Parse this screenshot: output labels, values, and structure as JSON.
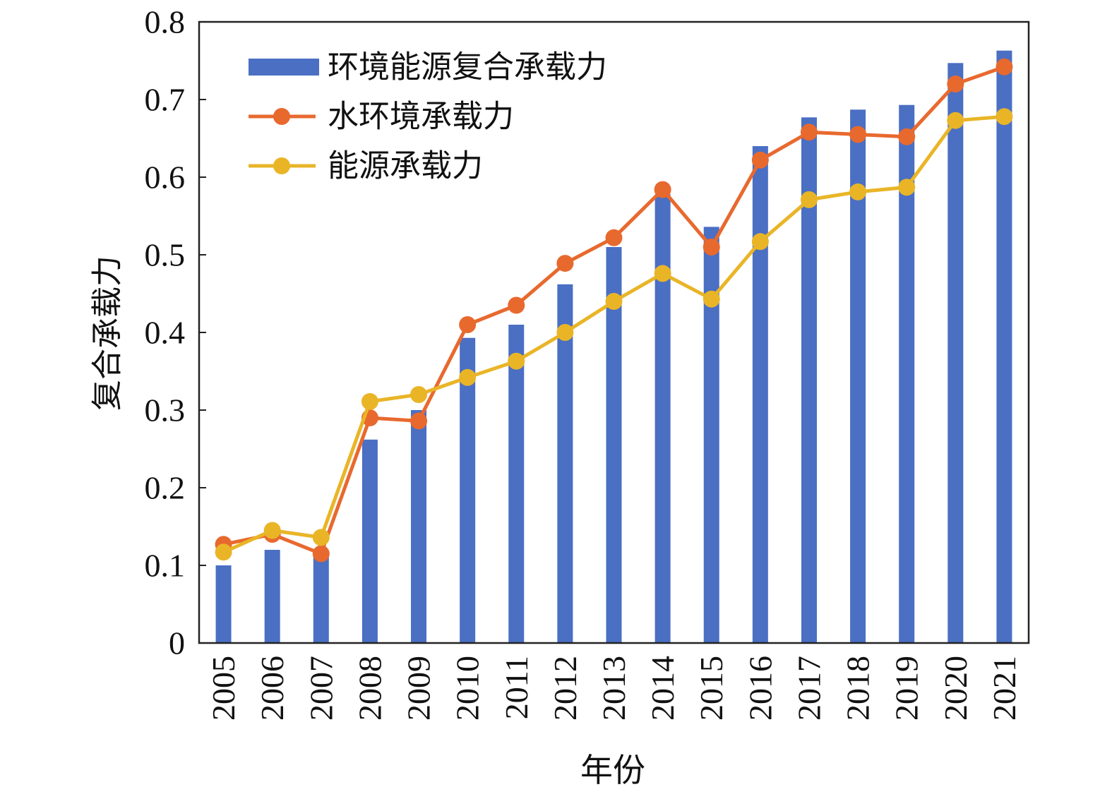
{
  "chart_data": {
    "type": "bar",
    "title": "",
    "xlabel": "年份",
    "ylabel": "复合承载力",
    "ylim": [
      0,
      0.8
    ],
    "yticks": [
      "0",
      "0.1",
      "0.2",
      "0.3",
      "0.4",
      "0.5",
      "0.6",
      "0.7",
      "0.8"
    ],
    "categories": [
      "2005",
      "2006",
      "2007",
      "2008",
      "2009",
      "2010",
      "2011",
      "2012",
      "2013",
      "2014",
      "2015",
      "2016",
      "2017",
      "2018",
      "2019",
      "2020",
      "2021"
    ],
    "series": [
      {
        "name": "环境能源复合承载力",
        "kind": "bar",
        "color": "#4a6fc3",
        "values": [
          0.1,
          0.12,
          0.115,
          0.262,
          0.3,
          0.393,
          0.41,
          0.462,
          0.51,
          0.578,
          0.536,
          0.64,
          0.677,
          0.687,
          0.693,
          0.747,
          0.763
        ]
      },
      {
        "name": "水环境承载力",
        "kind": "line",
        "color": "#e8692e",
        "values": [
          0.127,
          0.14,
          0.115,
          0.29,
          0.286,
          0.41,
          0.435,
          0.489,
          0.522,
          0.584,
          0.51,
          0.622,
          0.658,
          0.655,
          0.652,
          0.72,
          0.742
        ]
      },
      {
        "name": "能源承载力",
        "kind": "line",
        "color": "#e9b527",
        "values": [
          0.117,
          0.145,
          0.136,
          0.311,
          0.32,
          0.342,
          0.363,
          0.4,
          0.44,
          0.476,
          0.443,
          0.517,
          0.571,
          0.581,
          0.587,
          0.673,
          0.678
        ]
      }
    ],
    "legend": "top-left",
    "grid": false
  }
}
